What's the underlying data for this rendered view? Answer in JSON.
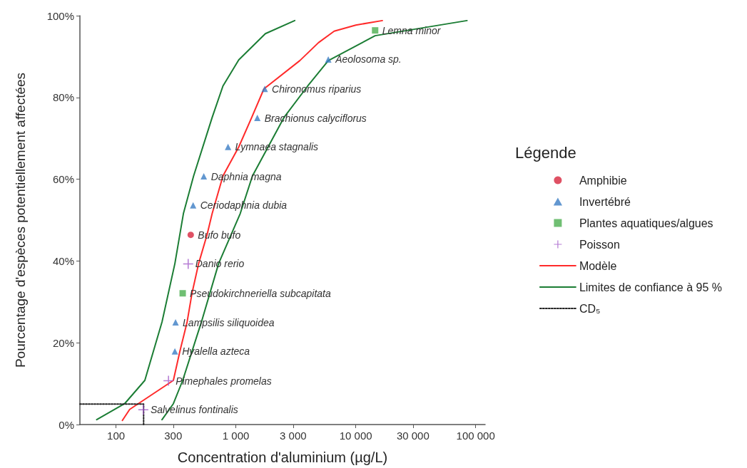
{
  "chart_data": {
    "type": "scatter",
    "xlabel": "Concentration d'aluminium (µg/L)",
    "ylabel": "Pourcentage d'espèces potentiellement affectées",
    "legend_title": "Légende",
    "legend": "right",
    "log": "x",
    "xlim": [
      50,
      120000
    ],
    "ylim": [
      0,
      100
    ],
    "xticks": [
      100,
      300,
      {
        "value": 1000,
        "label": "1 000"
      },
      {
        "value": 3000,
        "label": "3 000"
      },
      {
        "value": 10000,
        "label": "10 000"
      },
      {
        "value": 30000,
        "label": "30 000"
      },
      {
        "value": 100000,
        "label": "100 000"
      }
    ],
    "yticks": [
      {
        "value": 0,
        "label": "0%"
      },
      {
        "value": 20,
        "label": "20%"
      },
      {
        "value": 40,
        "label": "40%"
      },
      {
        "value": 60,
        "label": "60%"
      },
      {
        "value": 80,
        "label": "80%"
      },
      {
        "value": 100,
        "label": "100%"
      }
    ],
    "series": [
      {
        "name": "Amphibie",
        "marker": "circle",
        "color": "#d7263d",
        "x": [
          420
        ],
        "values": [
          46.4
        ]
      },
      {
        "name": "Invertébré",
        "marker": "triangle",
        "color": "#3b7dc4",
        "x": [
          5900,
          1740,
          1510,
          860,
          540,
          440,
          314,
          310
        ],
        "values": [
          89.3,
          82.1,
          75.0,
          67.9,
          60.7,
          53.6,
          25.0,
          17.9
        ]
      },
      {
        "name": "Plantes aquatiques/algues",
        "marker": "square",
        "color": "#4caf50",
        "x": [
          14500,
          360
        ],
        "values": [
          96.4,
          32.1
        ]
      },
      {
        "name": "Poisson",
        "marker": "cross",
        "color": "#a35bc9",
        "x": [
          400,
          274,
          169
        ],
        "values": [
          39.3,
          10.7,
          3.6
        ]
      },
      {
        "name": "Modèle",
        "type": "line",
        "line_style": "solid",
        "color": "#ff2a2a",
        "x": [
          113,
          130,
          301,
          341,
          392,
          431,
          489,
          576,
          634,
          780,
          1057,
          1355,
          1714,
          3412,
          4887,
          6607,
          10000,
          16670
        ],
        "values": [
          1.0,
          3.7,
          10.8,
          17.9,
          25.1,
          32.2,
          39.4,
          46.5,
          51.6,
          60.8,
          67.9,
          75.1,
          82.1,
          89.0,
          93.4,
          96.2,
          97.7,
          98.8
        ]
      },
      {
        "name": "Limites de confiance à 95 %",
        "type": "line",
        "line_style": "solid",
        "color": "#1b7d34",
        "x": [
          69,
          118,
          174,
          242,
          310,
          365,
          444,
          634,
          780,
          1057,
          1762,
          3097
        ],
        "values": [
          1.2,
          5.1,
          10.8,
          25.1,
          39.4,
          51.6,
          60.8,
          75.1,
          82.8,
          89.2,
          95.6,
          98.8
        ]
      },
      {
        "type": "line",
        "line_style": "solid",
        "color": "#1b7d34",
        "x": [
          242,
          301,
          360,
          516,
          718,
          1087,
          1374,
          2518,
          3972,
          5900,
          14500,
          84700
        ],
        "values": [
          1.2,
          5.1,
          10.8,
          25.1,
          39.4,
          51.6,
          60.8,
          75.1,
          82.8,
          89.0,
          95.1,
          98.8
        ]
      },
      {
        "name": "CD₅",
        "type": "line",
        "line_style": "dotted",
        "color": "#222222",
        "x": [
          50,
          170,
          170
        ],
        "values": [
          5,
          5,
          0
        ]
      }
    ],
    "annotations": [
      {
        "text": "Lemna minor",
        "x": 14500,
        "y": 96.4
      },
      {
        "text": "Aeolosoma sp.",
        "x": 5900,
        "y": 89.3
      },
      {
        "text": "Chironomus riparius",
        "x": 1740,
        "y": 82.1
      },
      {
        "text": "Brachionus calyciflorus",
        "x": 1510,
        "y": 75.0
      },
      {
        "text": "Lymnaea stagnalis",
        "x": 860,
        "y": 67.9
      },
      {
        "text": "Daphnia magna",
        "x": 540,
        "y": 60.7
      },
      {
        "text": "Ceriodaphnia dubia",
        "x": 440,
        "y": 53.6
      },
      {
        "text": "Bufo bufo",
        "x": 420,
        "y": 46.4
      },
      {
        "text": "Danio rerio",
        "x": 400,
        "y": 39.3
      },
      {
        "text": "Pseudokirchneriella subcapitata",
        "x": 360,
        "y": 32.1
      },
      {
        "text": "Lampsilis siliquoidea",
        "x": 314,
        "y": 25.0
      },
      {
        "text": "Hyalella azteca",
        "x": 310,
        "y": 17.9
      },
      {
        "text": "Pimephales promelas",
        "x": 274,
        "y": 10.7
      },
      {
        "text": "Salvelinus fontinalis",
        "x": 169,
        "y": 3.6
      }
    ]
  }
}
